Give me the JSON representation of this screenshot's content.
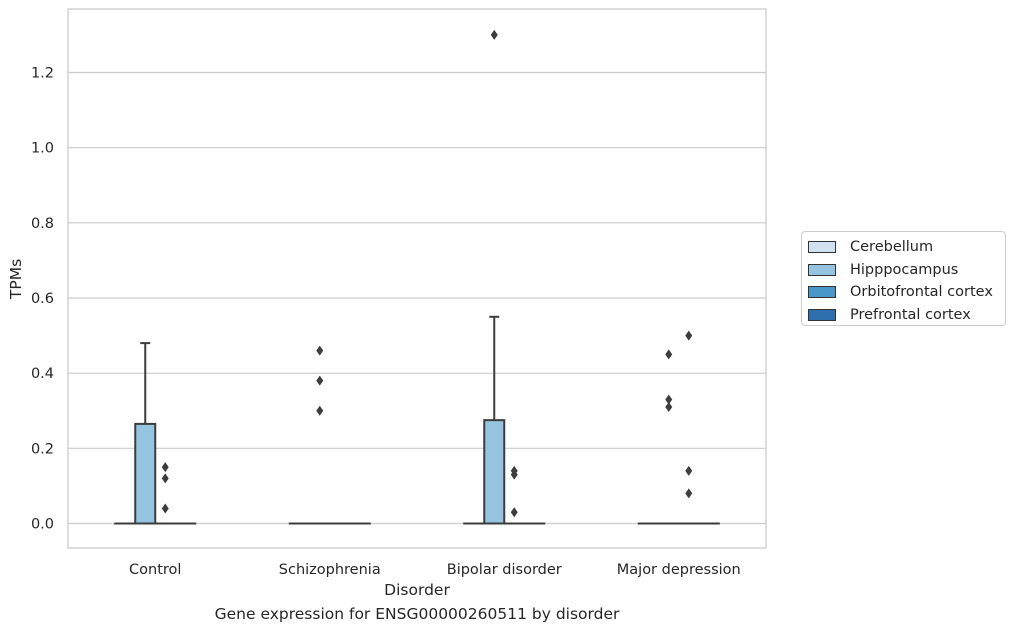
{
  "chart_data": {
    "type": "box",
    "caption": "Gene expression for ENSG00000260511 by disorder",
    "xlabel": "Disorder",
    "ylabel": "TPMs",
    "ylim": [
      -0.065,
      1.37
    ],
    "yticks": [
      0.0,
      0.2,
      0.4,
      0.6,
      0.8,
      1.0,
      1.2
    ],
    "ytick_labels": [
      "0.0",
      "0.2",
      "0.4",
      "0.6",
      "0.8",
      "1.0",
      "1.2"
    ],
    "categories": [
      "Control",
      "Schizophrenia",
      "Bipolar disorder",
      "Major depression"
    ],
    "grid": true,
    "legend_position": "right",
    "series": [
      {
        "name": "Cerebellum",
        "color": "#d0e1f2",
        "boxes": [
          {
            "q1": 0,
            "median": 0,
            "q3": 0,
            "whisker_low": 0,
            "whisker_high": 0,
            "outliers": []
          },
          {
            "q1": 0,
            "median": 0,
            "q3": 0,
            "whisker_low": 0,
            "whisker_high": 0,
            "outliers": []
          },
          {
            "q1": 0,
            "median": 0,
            "q3": 0,
            "whisker_low": 0,
            "whisker_high": 0,
            "outliers": []
          },
          {
            "q1": 0,
            "median": 0,
            "q3": 0,
            "whisker_low": 0,
            "whisker_high": 0,
            "outliers": []
          }
        ]
      },
      {
        "name": "Hipppocampus",
        "color": "#94c4df",
        "boxes": [
          {
            "q1": 0,
            "median": 0,
            "q3": 0.265,
            "whisker_low": 0,
            "whisker_high": 0.48,
            "outliers": []
          },
          {
            "q1": 0,
            "median": 0,
            "q3": 0,
            "whisker_low": 0,
            "whisker_high": 0,
            "outliers": [
              0.46,
              0.38,
              0.3
            ]
          },
          {
            "q1": 0,
            "median": 0,
            "q3": 0.275,
            "whisker_low": 0,
            "whisker_high": 0.55,
            "outliers": [
              1.3
            ]
          },
          {
            "q1": 0,
            "median": 0,
            "q3": 0,
            "whisker_low": 0,
            "whisker_high": 0,
            "outliers": [
              0.45,
              0.33,
              0.31
            ]
          }
        ]
      },
      {
        "name": "Orbitofrontal cortex",
        "color": "#4a98c9",
        "boxes": [
          {
            "q1": 0,
            "median": 0,
            "q3": 0,
            "whisker_low": 0,
            "whisker_high": 0,
            "outliers": [
              0.15,
              0.12,
              0.04
            ]
          },
          {
            "q1": 0,
            "median": 0,
            "q3": 0,
            "whisker_low": 0,
            "whisker_high": 0,
            "outliers": []
          },
          {
            "q1": 0,
            "median": 0,
            "q3": 0,
            "whisker_low": 0,
            "whisker_high": 0,
            "outliers": [
              0.14,
              0.13,
              0.03
            ]
          },
          {
            "q1": 0,
            "median": 0,
            "q3": 0,
            "whisker_low": 0,
            "whisker_high": 0,
            "outliers": [
              0.5,
              0.14,
              0.08
            ]
          }
        ]
      },
      {
        "name": "Prefrontal cortex",
        "color": "#2e6fae",
        "boxes": [
          {
            "q1": 0,
            "median": 0,
            "q3": 0,
            "whisker_low": 0,
            "whisker_high": 0,
            "outliers": []
          },
          {
            "q1": 0,
            "median": 0,
            "q3": 0,
            "whisker_low": 0,
            "whisker_high": 0,
            "outliers": []
          },
          {
            "q1": 0,
            "median": 0,
            "q3": 0,
            "whisker_low": 0,
            "whisker_high": 0,
            "outliers": []
          },
          {
            "q1": 0,
            "median": 0,
            "q3": 0,
            "whisker_low": 0,
            "whisker_high": 0,
            "outliers": []
          }
        ]
      }
    ]
  }
}
